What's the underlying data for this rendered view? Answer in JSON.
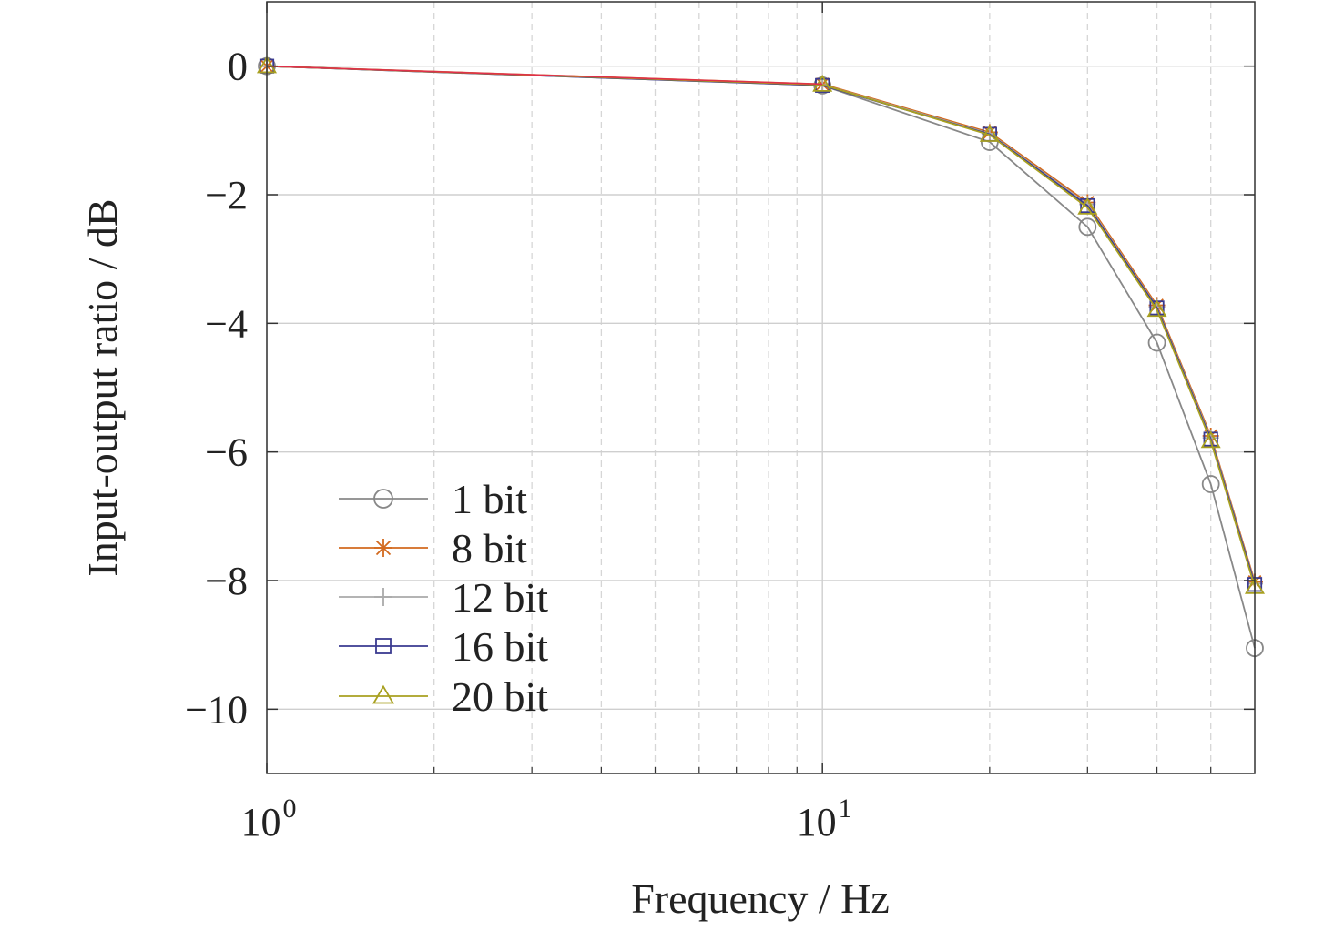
{
  "chart_data": {
    "type": "line",
    "title": "",
    "xlabel": "Frequency / Hz",
    "ylabel": "Input-output ratio / dB",
    "xscale": "log",
    "xlim": [
      1,
      60
    ],
    "ylim": [
      -11,
      1
    ],
    "grid": true,
    "legend_position": "bottom-left",
    "x_ticks": [
      {
        "value": 1,
        "base": "10",
        "exp": "0"
      },
      {
        "value": 10,
        "base": "10",
        "exp": "1"
      }
    ],
    "y_ticks": [
      {
        "value": 0,
        "label": "0"
      },
      {
        "value": -2,
        "label": "−2"
      },
      {
        "value": -4,
        "label": "−4"
      },
      {
        "value": -6,
        "label": "−6"
      },
      {
        "value": -8,
        "label": "−8"
      },
      {
        "value": -10,
        "label": "−10"
      }
    ],
    "x": [
      1,
      10,
      20,
      30,
      40,
      50,
      60
    ],
    "series": [
      {
        "name": "1 bit",
        "marker": "circle",
        "color": "#888888",
        "values": [
          0,
          -0.3,
          -1.18,
          -2.5,
          -4.3,
          -6.5,
          -9.05
        ]
      },
      {
        "name": "8 bit",
        "marker": "star",
        "color": "#d2691e",
        "values": [
          0,
          -0.28,
          -1.03,
          -2.12,
          -3.72,
          -5.75,
          -8.02
        ]
      },
      {
        "name": "12 bit",
        "marker": "plus",
        "color": "#aaaaaa",
        "values": [
          0,
          -0.29,
          -1.05,
          -2.15,
          -3.75,
          -5.78,
          -8.05
        ]
      },
      {
        "name": "16 bit",
        "marker": "square",
        "color": "#3a3a90",
        "values": [
          0,
          -0.3,
          -1.06,
          -2.17,
          -3.76,
          -5.8,
          -8.06
        ]
      },
      {
        "name": "20 bit",
        "marker": "triangle",
        "color": "#a8a020",
        "values": [
          0,
          -0.29,
          -1.07,
          -2.2,
          -3.79,
          -5.83,
          -8.1
        ]
      }
    ]
  }
}
